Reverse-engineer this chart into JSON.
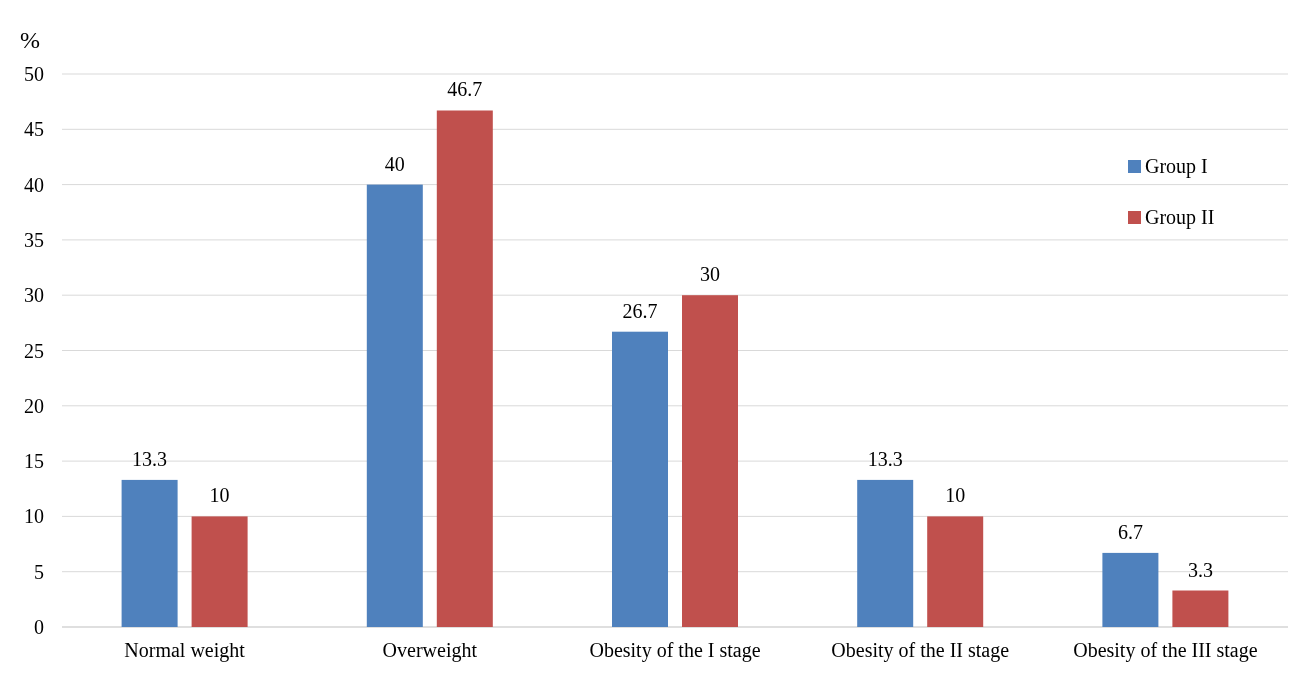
{
  "chart_data": {
    "type": "bar",
    "ylabel": "%",
    "categories": [
      "Normal weight",
      "Overweight",
      "Obesity of the I stage",
      "Obesity of the II stage",
      "Obesity of the III stage"
    ],
    "series": [
      {
        "name": "Group I",
        "color": "#4f81bd",
        "values": [
          13.3,
          40,
          26.7,
          13.3,
          6.7
        ]
      },
      {
        "name": "Group II",
        "color": "#c0504d",
        "values": [
          10,
          46.7,
          30,
          10,
          3.3
        ]
      }
    ],
    "ylim": [
      0,
      50
    ],
    "yticks": [
      0,
      5,
      10,
      15,
      20,
      25,
      30,
      35,
      40,
      45,
      50
    ],
    "grid": "y",
    "legend": "top right",
    "data_labels": true
  }
}
